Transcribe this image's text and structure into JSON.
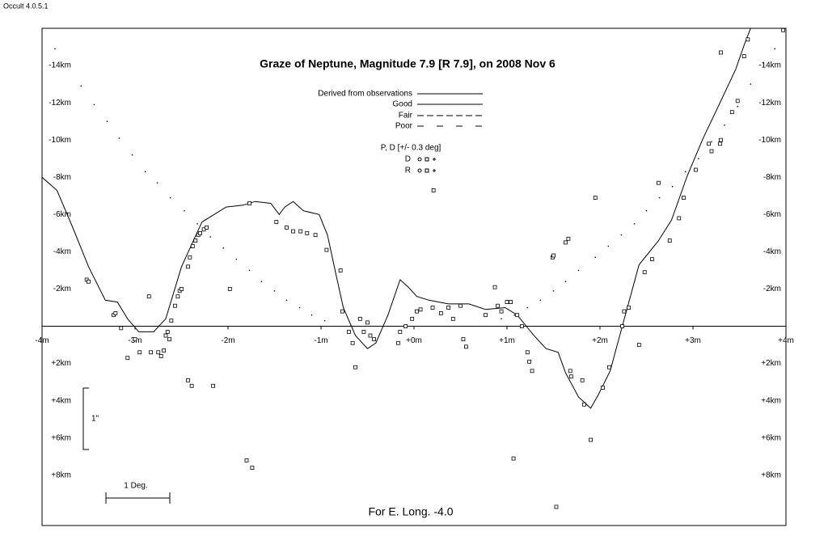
{
  "app_version": "Occult 4.0.5.1",
  "chart_data": {
    "type": "graze",
    "title": "Graze of  Neptune,  Magnitude 7.9 [R 7.9],  on 2008 Nov  6",
    "footer": "For E. Long. -4.0",
    "legend_lines": [
      "Derived from observations",
      "Good",
      "Fair",
      "Poor"
    ],
    "pd_label": "P, D [+/- 0.3 deg]",
    "pd_rows": [
      "D",
      "R"
    ],
    "scale_arc_label": "1\"",
    "scale_deg_label": "1 Deg.",
    "xlim": [
      -4,
      4
    ],
    "ylim": [
      10.7,
      -16
    ],
    "xticks": [
      {
        "value": -4,
        "label": "-4m"
      },
      {
        "value": -3,
        "label": "-3m"
      },
      {
        "value": -2,
        "label": "-2m"
      },
      {
        "value": -1,
        "label": "-1m"
      },
      {
        "value": 0,
        "label": "+0m"
      },
      {
        "value": 1,
        "label": "+1m"
      },
      {
        "value": 2,
        "label": "+2m"
      },
      {
        "value": 3,
        "label": "+3m"
      },
      {
        "value": 4,
        "label": "+4m"
      }
    ],
    "yticks": [
      {
        "value": -14,
        "label": "-14km"
      },
      {
        "value": -12,
        "label": "-12km"
      },
      {
        "value": -10,
        "label": "-10km"
      },
      {
        "value": -8,
        "label": "-8km"
      },
      {
        "value": -6,
        "label": "-6km"
      },
      {
        "value": -4,
        "label": "-4km"
      },
      {
        "value": -2,
        "label": "-2km"
      },
      {
        "value": 2,
        "label": "+2km"
      },
      {
        "value": 4,
        "label": "+4km"
      },
      {
        "value": 6,
        "label": "+6km"
      },
      {
        "value": 8,
        "label": "+8km"
      }
    ],
    "profile": {
      "name": "Derived from observations",
      "color": "#000000",
      "x": [
        -4.0,
        -3.84,
        -3.67,
        -3.5,
        -3.32,
        -3.19,
        -3.08,
        -2.96,
        -2.8,
        -2.67,
        -2.5,
        -2.28,
        -2.02,
        -1.84,
        -1.71,
        -1.54,
        -1.45,
        -1.39,
        -1.3,
        -1.19,
        -1.02,
        -0.93,
        -0.84,
        -0.76,
        -0.63,
        -0.5,
        -0.41,
        -0.28,
        -0.15,
        -0.06,
        0.03,
        0.16,
        0.37,
        0.59,
        0.77,
        0.98,
        1.11,
        1.29,
        1.42,
        1.55,
        1.63,
        1.77,
        1.9,
        1.98,
        2.11,
        2.24,
        2.42,
        2.63,
        2.77,
        2.94,
        3.11,
        3.29,
        3.46,
        3.55,
        3.62
      ],
      "y": [
        -8.0,
        -7.3,
        -5.3,
        -3.2,
        -1.4,
        -1.3,
        -0.4,
        0.3,
        0.3,
        -0.4,
        -3.2,
        -5.6,
        -6.4,
        -6.5,
        -6.7,
        -6.6,
        -6.0,
        -6.4,
        -6.7,
        -6.2,
        -6.0,
        -4.9,
        -2.8,
        -1.0,
        0.5,
        1.2,
        0.9,
        -0.6,
        -2.5,
        -2.1,
        -1.6,
        -1.4,
        -1.2,
        -1.2,
        -0.9,
        -1.0,
        -0.6,
        0.5,
        1.2,
        1.4,
        2.5,
        3.8,
        4.4,
        3.7,
        2.4,
        0.0,
        -3.3,
        -4.6,
        -5.7,
        -8.1,
        -10.1,
        -12.0,
        -13.8,
        -15.1,
        -16.0
      ]
    },
    "points": {
      "color": "#000000",
      "x": [
        -3.52,
        -3.5,
        -3.23,
        -3.21,
        -3.15,
        -3.08,
        -3.0,
        -2.95,
        -2.85,
        -2.83,
        -2.75,
        -2.72,
        -2.69,
        -2.67,
        -2.65,
        -2.63,
        -2.61,
        -2.57,
        -2.54,
        -2.52,
        -2.5,
        -2.43,
        -2.41,
        -2.38,
        -2.35,
        -2.32,
        -2.3,
        -2.26,
        -2.23,
        -2.43,
        -2.39,
        -2.16,
        -1.98,
        -1.77,
        -1.8,
        -1.74,
        -1.48,
        -1.37,
        -1.3,
        -1.22,
        -1.15,
        -1.06,
        -0.94,
        -0.79,
        -0.77,
        -0.7,
        -0.66,
        -0.63,
        -0.58,
        -0.54,
        -0.5,
        -0.47,
        -0.43,
        -0.17,
        -0.15,
        -0.09,
        -0.02,
        0.03,
        0.07,
        0.2,
        0.21,
        0.29,
        0.37,
        0.42,
        0.5,
        0.53,
        0.56,
        0.77,
        0.87,
        0.9,
        0.94,
        1.0,
        1.04,
        1.07,
        1.11,
        1.16,
        1.22,
        1.24,
        1.27,
        1.49,
        1.5,
        1.63,
        1.66,
        1.68,
        1.69,
        1.81,
        1.83,
        1.9,
        1.95,
        2.03,
        2.1,
        2.24,
        2.26,
        2.31,
        2.42,
        2.48,
        2.56,
        2.63,
        2.75,
        2.85,
        2.9,
        3.03,
        3.17,
        3.2,
        3.29,
        3.3,
        3.42,
        3.48,
        3.55,
        3.59,
        1.53,
        3.97,
        3.3
      ],
      "y": [
        -2.5,
        -2.4,
        -0.6,
        -0.7,
        0.1,
        1.7,
        0.7,
        1.4,
        -1.6,
        1.4,
        1.4,
        1.6,
        1.3,
        0.5,
        0.3,
        0.7,
        -0.3,
        -1.1,
        -1.6,
        -1.9,
        -2.0,
        -3.2,
        -3.7,
        -4.3,
        -4.6,
        -4.9,
        -5.0,
        -5.2,
        -5.3,
        2.9,
        3.2,
        3.2,
        -2.0,
        -6.6,
        7.2,
        7.6,
        -5.6,
        -5.3,
        -5.1,
        -5.1,
        -5.0,
        -4.9,
        -4.1,
        -3.0,
        -0.8,
        0.3,
        0.9,
        2.2,
        -0.4,
        0.3,
        -0.2,
        0.5,
        0.7,
        0.9,
        0.3,
        0.0,
        -0.4,
        -0.8,
        -0.9,
        -1.0,
        -7.3,
        -0.7,
        -1.0,
        -0.4,
        -1.1,
        0.7,
        1.1,
        -0.6,
        -2.1,
        -1.1,
        -0.8,
        -1.3,
        -1.3,
        7.1,
        -0.6,
        0.0,
        1.4,
        1.9,
        2.4,
        -3.7,
        -3.8,
        -4.5,
        -4.7,
        2.4,
        2.7,
        2.9,
        4.2,
        6.1,
        -6.9,
        3.3,
        2.2,
        0.0,
        -0.8,
        -1.0,
        1.0,
        -2.9,
        -3.6,
        -7.7,
        -4.6,
        -5.8,
        -6.9,
        -8.4,
        -9.8,
        -9.4,
        -9.8,
        -10.0,
        -11.5,
        -12.1,
        -14.5,
        -15.4,
        9.7,
        -15.9,
        -14.7
      ]
    },
    "limits": {
      "color": "#000000",
      "x": [
        -3.86,
        -3.58,
        -3.44,
        -3.3,
        -3.17,
        -3.03,
        -2.89,
        -2.76,
        -2.62,
        -2.47,
        -2.33,
        -2.19,
        -2.05,
        -1.91,
        -1.77,
        -1.64,
        -1.5,
        -1.37,
        -1.23,
        -1.1,
        -0.96,
        0.94,
        1.08,
        1.22,
        1.36,
        1.5,
        1.63,
        1.77,
        1.95,
        2.09,
        2.23,
        2.37,
        2.5,
        2.64,
        2.78,
        2.92,
        3.06,
        3.2,
        3.34,
        3.48,
        3.62,
        3.76,
        3.88
      ],
      "y": [
        -14.9,
        -12.9,
        -11.9,
        -11.0,
        -10.1,
        -9.2,
        -8.3,
        -7.7,
        -6.9,
        -6.2,
        -5.5,
        -4.8,
        -4.2,
        -3.6,
        -3.0,
        -2.4,
        -1.9,
        -1.4,
        -1.0,
        -0.6,
        -0.3,
        -0.4,
        -0.6,
        -1.0,
        -1.4,
        -1.9,
        -2.4,
        -3.0,
        -3.7,
        -4.3,
        -4.9,
        -5.5,
        -6.2,
        -6.9,
        -7.5,
        -8.3,
        -9.0,
        -9.9,
        -10.8,
        -11.8,
        -13.0,
        -14.1,
        -14.9
      ]
    }
  }
}
